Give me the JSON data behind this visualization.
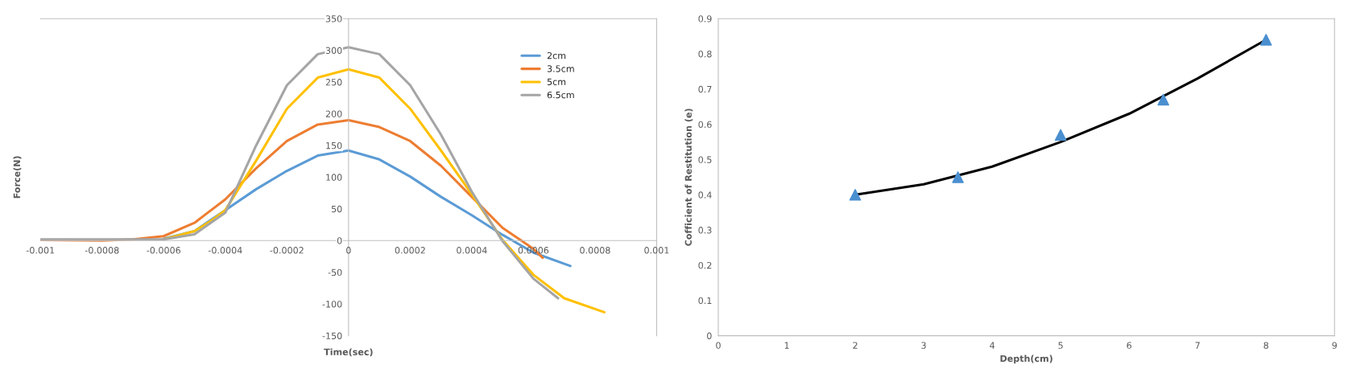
{
  "chart_data": [
    {
      "type": "line",
      "xlabel": "Time(sec)",
      "ylabel": "Force(N)",
      "xlim": [
        -0.001,
        0.001
      ],
      "ylim": [
        -150,
        350
      ],
      "xticks": [
        -0.001,
        -0.0008,
        -0.0006,
        -0.0004,
        -0.0002,
        0,
        0.0002,
        0.0004,
        0.0006,
        0.0008,
        0.001
      ],
      "yticks": [
        -150,
        -100,
        -50,
        0,
        50,
        100,
        150,
        200,
        250,
        300,
        350
      ],
      "grid": false,
      "legend": "top right",
      "series": [
        {
          "name": "2cm",
          "color": "#5b9bd5",
          "x": [
            -0.0006,
            -0.0005,
            -0.0004,
            -0.0003,
            -0.0002,
            -0.0001,
            0,
            0.0001,
            0.0002,
            0.0003,
            0.0004,
            0.0005,
            0.0006,
            0.00072
          ],
          "values": [
            3,
            15,
            48,
            81,
            110,
            134,
            142,
            128,
            101,
            69,
            40,
            9,
            -19,
            -40
          ]
        },
        {
          "name": "3.5cm",
          "color": "#ed7d31",
          "x": [
            -0.001,
            -0.0008,
            -0.0007,
            -0.0006,
            -0.0005,
            -0.0004,
            -0.0003,
            -0.0002,
            -0.0001,
            0,
            0.0001,
            0.0002,
            0.0003,
            0.0004,
            0.0005,
            0.0006,
            0.00063
          ],
          "values": [
            1,
            0,
            2,
            7,
            28,
            65,
            114,
            157,
            183,
            190,
            179,
            157,
            118,
            69,
            20,
            -13,
            -27
          ]
        },
        {
          "name": "5cm",
          "color": "#ffc000",
          "x": [
            -0.0006,
            -0.0005,
            -0.00045,
            -0.0004,
            -0.0003,
            -0.0002,
            -0.0001,
            0,
            0.0001,
            0.0002,
            0.0003,
            0.0004,
            0.0005,
            0.0006,
            0.0007,
            0.00083
          ],
          "values": [
            2,
            15,
            30,
            48,
            126,
            208,
            257,
            270,
            257,
            208,
            142,
            73,
            1,
            -54,
            -91,
            -113
          ]
        },
        {
          "name": "6.5cm",
          "color": "#a5a5a5",
          "x": [
            -0.001,
            -0.0008,
            -0.0007,
            -0.0006,
            -0.0005,
            -0.0004,
            -0.0003,
            -0.0002,
            -0.0001,
            0,
            0.0001,
            0.0002,
            0.0003,
            0.0004,
            0.0005,
            0.0006,
            0.00068
          ],
          "values": [
            2,
            2,
            2,
            2,
            10,
            44,
            150,
            245,
            294,
            305,
            294,
            245,
            167,
            77,
            -1,
            -60,
            -91
          ]
        }
      ]
    },
    {
      "type": "scatter",
      "xlabel": "Depth(cm)",
      "ylabel": "Cofficient of Restitution (e)",
      "xlim": [
        0,
        9
      ],
      "ylim": [
        0,
        0.9
      ],
      "xticks": [
        0,
        1,
        2,
        3,
        4,
        5,
        6,
        7,
        8,
        9
      ],
      "yticks": [
        0,
        0.1,
        0.2,
        0.3,
        0.4,
        0.5,
        0.6,
        0.7,
        0.8,
        0.9
      ],
      "grid": false,
      "legend": false,
      "series": [
        {
          "color": "#4a8fd0",
          "marker": "triangle",
          "x": [
            2,
            3.5,
            5,
            6.5,
            8
          ],
          "values": [
            0.4,
            0.45,
            0.57,
            0.67,
            0.84
          ]
        },
        {
          "type": "line",
          "color": "#000000",
          "marker": "none",
          "x": [
            2,
            3,
            4,
            5,
            6,
            7,
            8
          ],
          "values": [
            0.4,
            0.43,
            0.48,
            0.55,
            0.63,
            0.73,
            0.84
          ]
        }
      ]
    }
  ]
}
